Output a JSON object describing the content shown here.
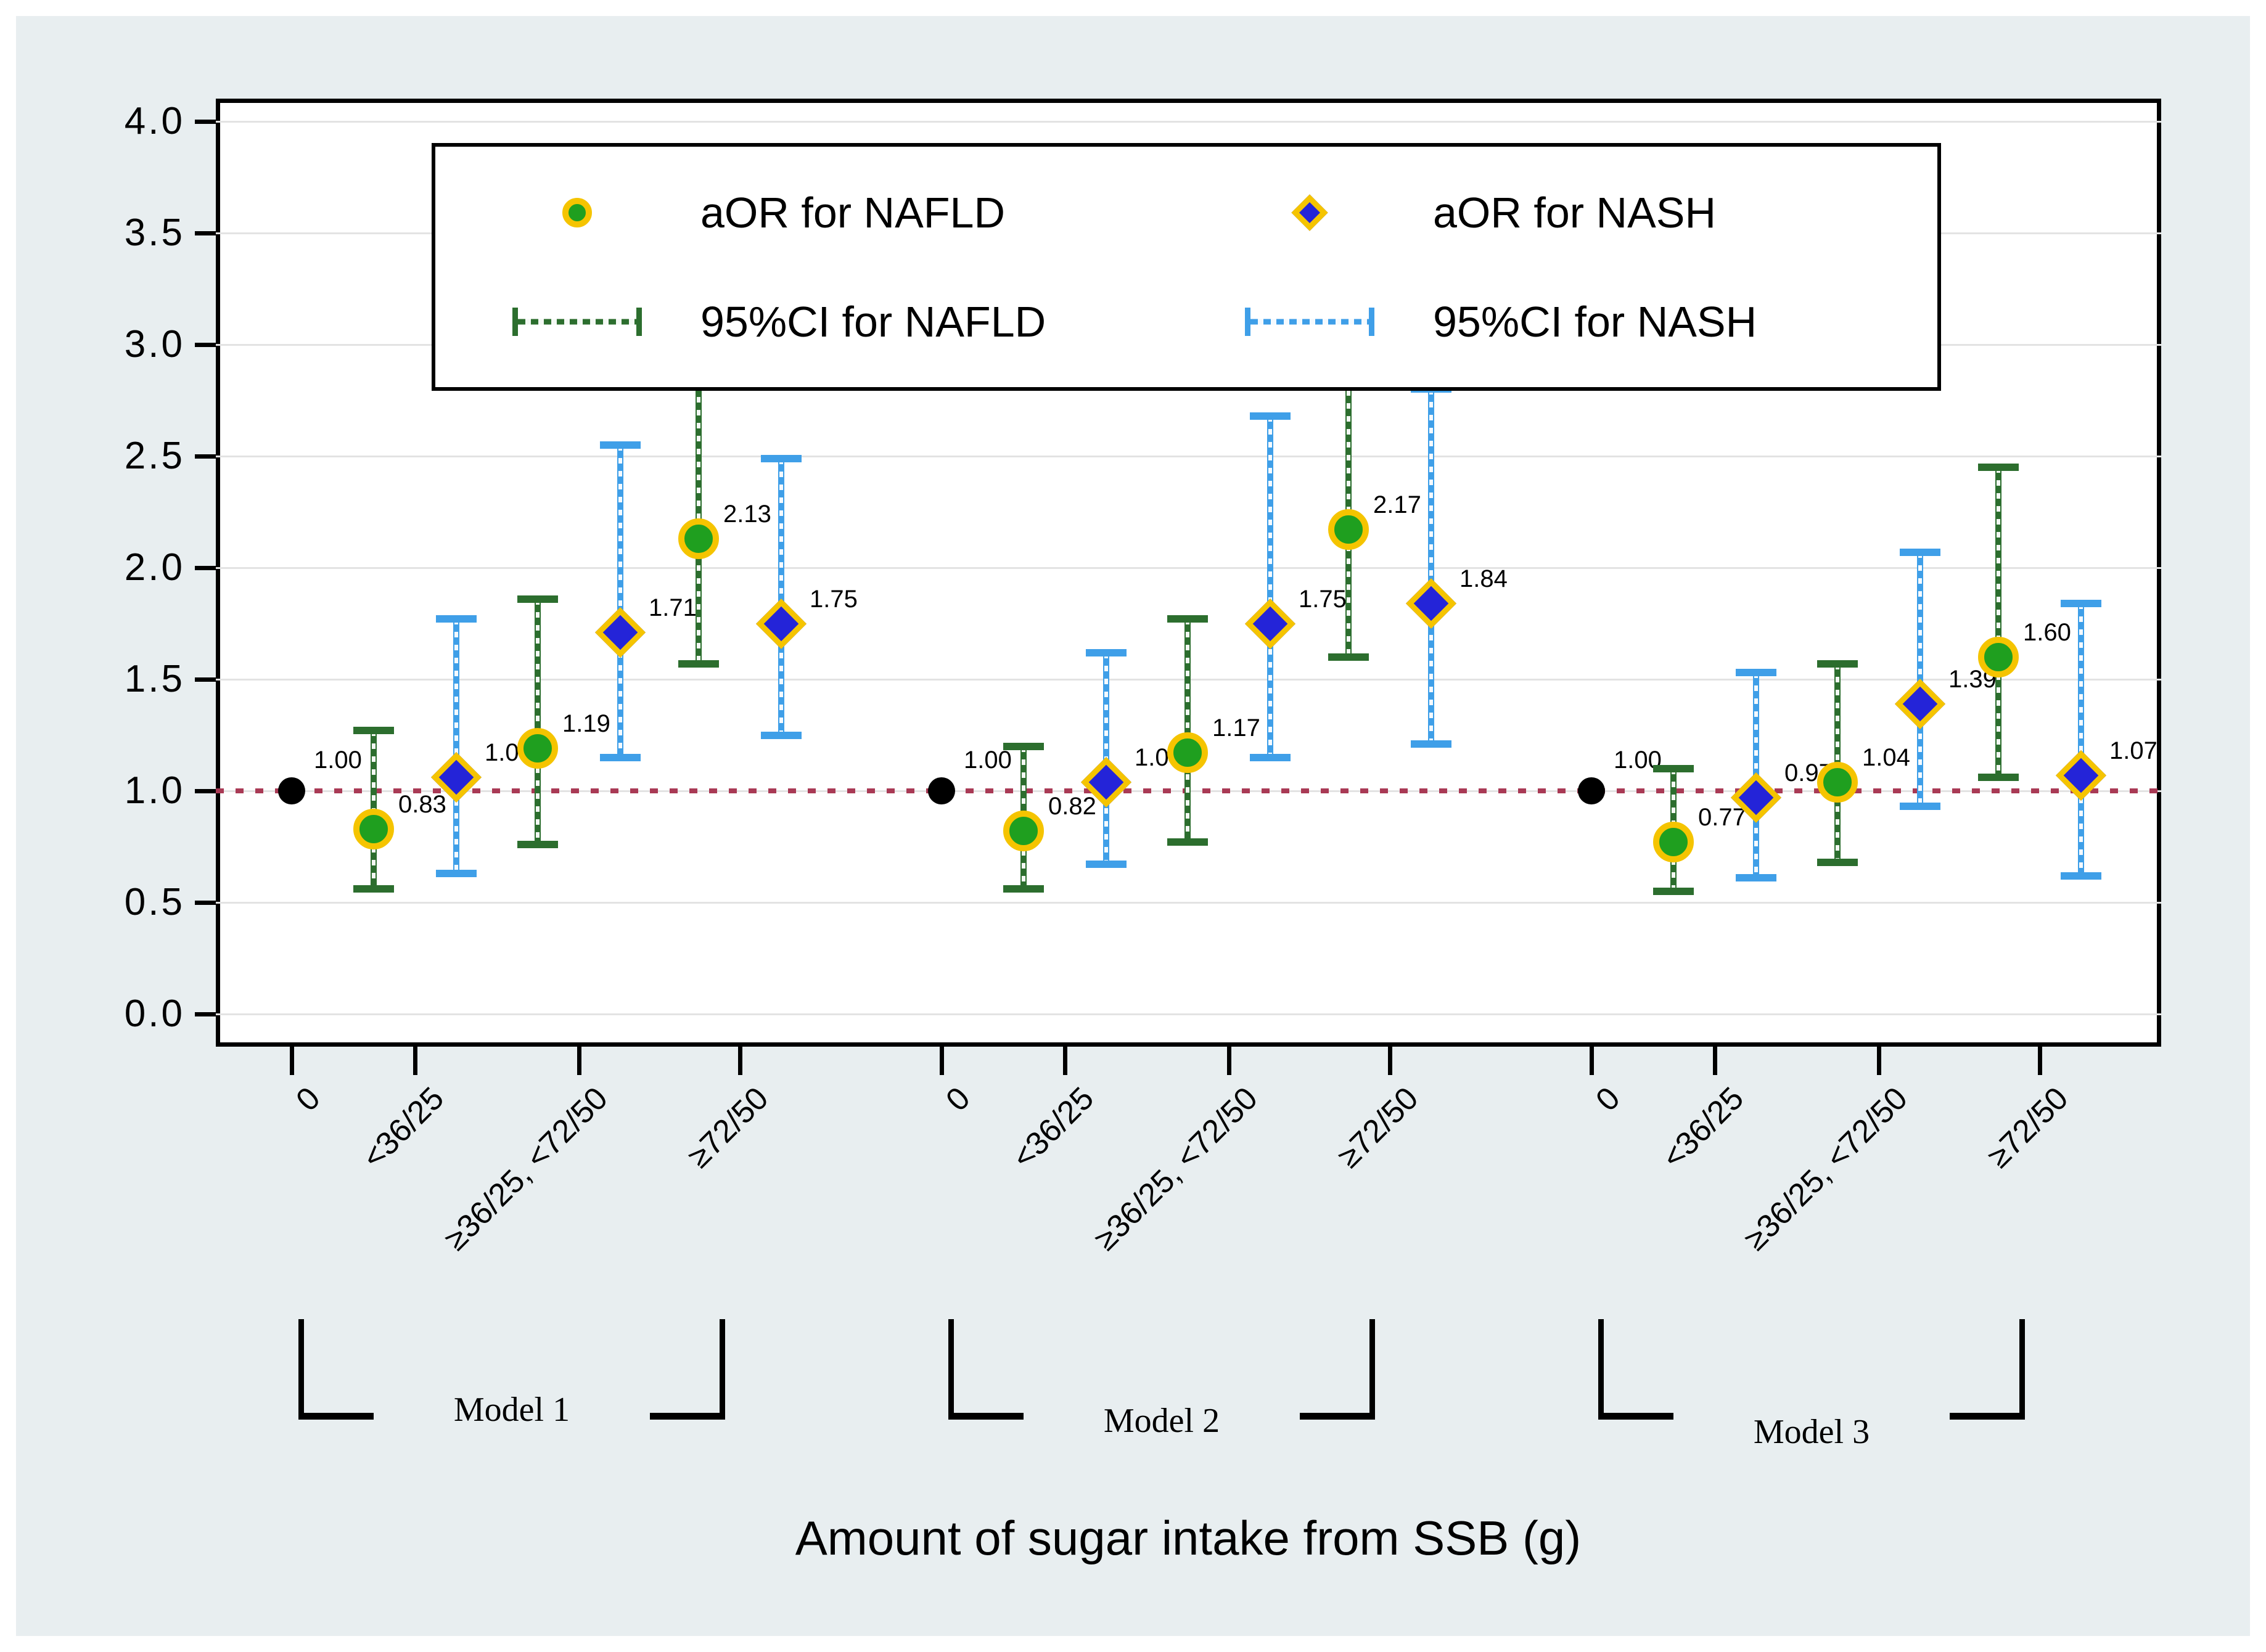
{
  "chart_data": {
    "type": "scatter",
    "subtype": "forest-errorbar",
    "xlabel": "Amount of sugar intake from SSB (g)",
    "ylim": [
      0.0,
      4.0
    ],
    "yticks": [
      0.0,
      0.5,
      1.0,
      1.5,
      2.0,
      2.5,
      3.0,
      3.5,
      4.0
    ],
    "grid": "on",
    "x_tick_rotation": 45,
    "reference_line_value": 1.0,
    "reference_label": "1.00",
    "categories": [
      "0",
      "<36/25",
      "≥36/25, <72/50",
      "≥72/50"
    ],
    "legend": {
      "position": "top-inside",
      "nafld_marker_label": "aOR for NAFLD",
      "nash_marker_label": "aOR for NASH",
      "nafld_ci_label": "95%CI for NAFLD",
      "nash_ci_label": "95%CI for NASH"
    },
    "series_names": [
      "aOR for NAFLD",
      "aOR for NASH"
    ],
    "models": [
      {
        "name": "Model 1",
        "reference": {
          "value": 1.0,
          "label": "1.00"
        },
        "nafld": [
          {
            "value": 0.83,
            "label": "0.83",
            "ci_low": 0.56,
            "ci_high": 1.27
          },
          {
            "value": 1.19,
            "label": "1.19",
            "ci_low": 0.76,
            "ci_high": 1.86
          },
          {
            "value": 2.13,
            "label": "2.13",
            "ci_low": 1.57,
            "ci_high": 2.88
          }
        ],
        "nash": [
          {
            "value": 1.06,
            "label": "1.06",
            "ci_low": 0.63,
            "ci_high": 1.77
          },
          {
            "value": 1.71,
            "label": "1.71",
            "ci_low": 1.15,
            "ci_high": 2.55
          },
          {
            "value": 1.75,
            "label": "1.75",
            "ci_low": 1.25,
            "ci_high": 2.49
          }
        ]
      },
      {
        "name": "Model 2",
        "reference": {
          "value": 1.0,
          "label": "1.00"
        },
        "nafld": [
          {
            "value": 0.82,
            "label": "0.82",
            "ci_low": 0.56,
            "ci_high": 1.2
          },
          {
            "value": 1.17,
            "label": "1.17",
            "ci_low": 0.77,
            "ci_high": 1.77
          },
          {
            "value": 2.17,
            "label": "2.17",
            "ci_low": 1.6,
            "ci_high": 2.97
          }
        ],
        "nash": [
          {
            "value": 1.04,
            "label": "1.04",
            "ci_low": 0.67,
            "ci_high": 1.62
          },
          {
            "value": 1.75,
            "label": "1.75",
            "ci_low": 1.15,
            "ci_high": 2.68
          },
          {
            "value": 1.84,
            "label": "1.84",
            "ci_low": 1.21,
            "ci_high": 2.8
          }
        ]
      },
      {
        "name": "Model 3",
        "reference": {
          "value": 1.0,
          "label": "1.00"
        },
        "nafld": [
          {
            "value": 0.77,
            "label": "0.77",
            "ci_low": 0.55,
            "ci_high": 1.1
          },
          {
            "value": 1.04,
            "label": "1.04",
            "ci_low": 0.68,
            "ci_high": 1.57
          },
          {
            "value": 1.6,
            "label": "1.60",
            "ci_low": 1.06,
            "ci_high": 2.45
          }
        ],
        "nash": [
          {
            "value": 0.97,
            "label": "0.97",
            "ci_low": 0.61,
            "ci_high": 1.53
          },
          {
            "value": 1.39,
            "label": "1.39",
            "ci_low": 0.93,
            "ci_high": 2.07
          },
          {
            "value": 1.07,
            "label": "1.07",
            "ci_low": 0.62,
            "ci_high": 1.84
          }
        ]
      }
    ],
    "colors": {
      "panel_bg": "#e8eef0",
      "plot_bg": "#ffffff",
      "grid": "#e3e3e3",
      "axis": "#000000",
      "reference_line": "#a93a55",
      "nafld_marker": "#1f9f1f",
      "nash_marker": "#2424d8",
      "marker_halo": "#f5c400",
      "nafld_ci": "#2c6e2e",
      "nash_ci": "#3f9fe8",
      "reference_dot": "#000000"
    }
  }
}
